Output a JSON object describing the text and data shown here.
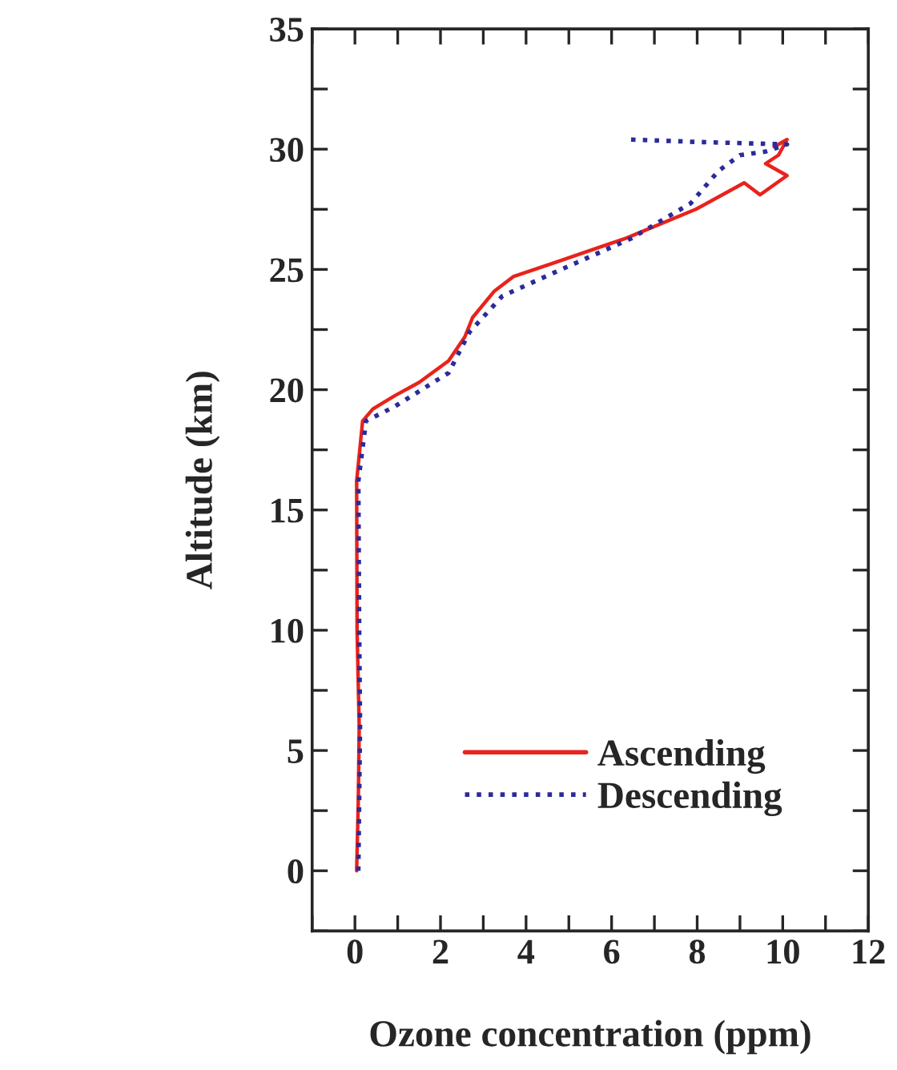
{
  "chart_data": {
    "type": "line",
    "xlabel": "Ozone concentration (ppm)",
    "ylabel": "Altitude (km)",
    "xlim": [
      -1,
      12
    ],
    "xticks": [
      0,
      2,
      4,
      6,
      8,
      10,
      12
    ],
    "ylim": [
      -2.5,
      35
    ],
    "yticks": [
      0,
      5,
      10,
      15,
      20,
      25,
      30,
      35
    ],
    "legend": "lower center",
    "grid": false,
    "series": [
      {
        "name": "Ascending",
        "color": "#e8231c",
        "line_style": "solid",
        "x": [
          0.04,
          0.08,
          0.1,
          0.05,
          0.04,
          0.18,
          0.42,
          0.93,
          1.5,
          2.19,
          2.57,
          2.75,
          3.26,
          3.7,
          4.7,
          6.34,
          7.97,
          9.1,
          9.47,
          10.1,
          9.6,
          9.9,
          10.1,
          9.8
        ],
        "values": [
          0,
          3,
          6,
          10,
          16.2,
          18.7,
          19.2,
          19.75,
          20.3,
          21.2,
          22.2,
          23.0,
          24.1,
          24.7,
          25.3,
          26.3,
          27.5,
          28.6,
          28.1,
          28.9,
          29.4,
          29.75,
          30.4,
          30.1
        ]
      },
      {
        "name": "Descending",
        "color": "#2b2b9a",
        "line_style": "dotted",
        "x": [
          0.08,
          0.1,
          0.12,
          0.1,
          0.08,
          0.26,
          0.93,
          2.19,
          2.68,
          3.45,
          4.7,
          6.47,
          7.85,
          8.5,
          9.0,
          9.6,
          10.1,
          8.0,
          6.4
        ],
        "values": [
          0,
          3,
          6,
          10,
          16.2,
          18.7,
          19.3,
          20.7,
          22.4,
          23.9,
          24.9,
          26.3,
          27.75,
          29.1,
          29.75,
          29.9,
          30.2,
          30.3,
          30.4
        ]
      }
    ]
  }
}
